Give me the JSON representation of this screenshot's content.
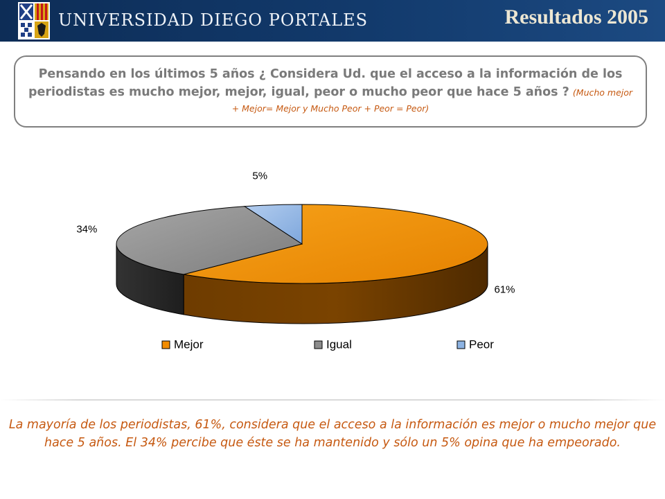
{
  "header": {
    "university_name": "UNIVERSIDAD DIEGO PORTALES",
    "results_title": "Resultados 2005"
  },
  "question": {
    "main": "Pensando en los últimos 5 años ¿ Considera Ud. que el acceso a la información de los periodistas es mucho mejor, mejor, igual, peor o mucho peor que hace 5 años ?",
    "note": "(Mucho mejor + Mejor= Mejor y  Mucho Peor + Peor = Peor)"
  },
  "chart_data": {
    "type": "pie",
    "categories": [
      "Mejor",
      "Igual",
      "Peor"
    ],
    "values": [
      61,
      34,
      5
    ],
    "data_labels": [
      "61%",
      "34%",
      "5%"
    ],
    "colors": [
      "#f28c00",
      "#8c8c8c",
      "#8db3e2"
    ],
    "legend_position": "bottom",
    "three_d": true
  },
  "conclusion": "La mayoría de los periodistas, 61%, considera que el acceso a la información es mejor o mucho mejor que hace 5 años. El 34% percibe que éste se ha mantenido y sólo un 5% opina que ha empeorado."
}
